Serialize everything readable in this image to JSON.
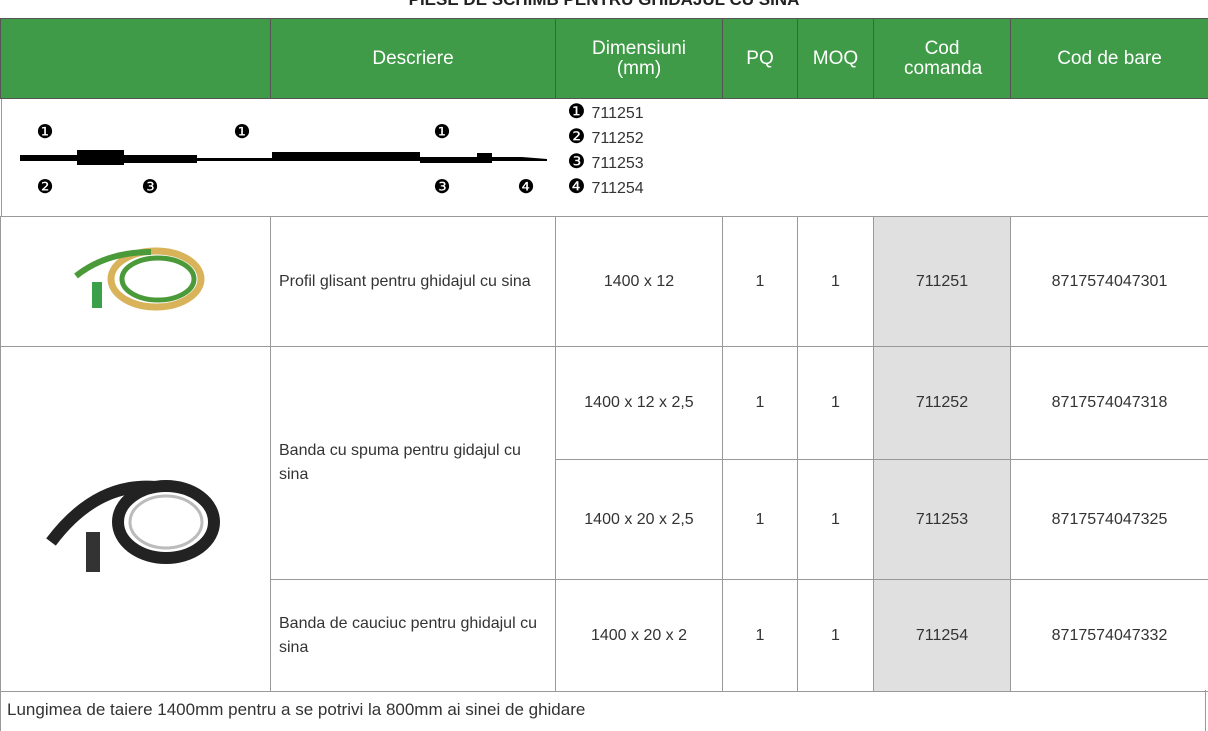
{
  "title": "PIESE DE SCHIMB PENTRU GHIDAJUL CU SINA",
  "table": {
    "headers": [
      "Descriere",
      "Dimensiuni (mm)",
      "PQ",
      "MOQ",
      "Cod comanda",
      "Cod de bare"
    ],
    "diagram": {
      "labels_top": [
        "❶",
        "❶",
        "❶"
      ],
      "labels_bottom": [
        "❷",
        "❸",
        "❸",
        "❹"
      ],
      "legend": [
        {
          "marker": "❶",
          "code": "711251"
        },
        {
          "marker": "❷",
          "code": "711252"
        },
        {
          "marker": "❸",
          "code": "711253"
        },
        {
          "marker": "❹",
          "code": "711254"
        }
      ]
    },
    "items": [
      {
        "description": "Profil glisant pentru ghidajul cu sina",
        "variants": [
          {
            "dimensions": "1400 x 12",
            "pq": 1,
            "moq": 1,
            "code": "711251",
            "barcode": "8717574047301"
          }
        ]
      },
      {
        "description": "Banda cu spuma pentru gidajul cu sina",
        "variants": [
          {
            "dimensions": "1400 x 12 x 2,5",
            "pq": 1,
            "moq": 1,
            "code": "711252",
            "barcode": "8717574047318"
          },
          {
            "dimensions": "1400 x 20 x 2,5",
            "pq": 1,
            "moq": 1,
            "code": "711253",
            "barcode": "8717574047325"
          }
        ]
      },
      {
        "description": "Banda de cauciuc pentru ghidajul cu sina",
        "variants": [
          {
            "dimensions": "1400 x 20 x 2",
            "pq": 1,
            "moq": 1,
            "code": "711254",
            "barcode": "8717574047332"
          }
        ]
      }
    ]
  },
  "footer": "Lungimea de taiere 1400mm pentru a se potrivi la 800mm ai sinei de ghidare"
}
